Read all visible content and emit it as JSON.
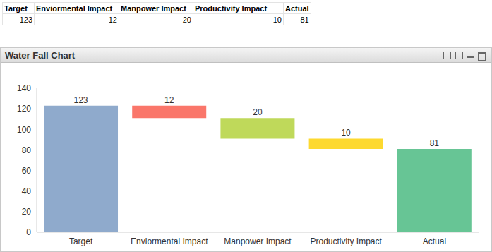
{
  "table": {
    "columns": [
      "Target",
      "Enviormental Impact",
      "Manpower Impact",
      "Productivity Impact",
      "Actual"
    ],
    "rows": [
      [
        123,
        12,
        20,
        10,
        81
      ]
    ]
  },
  "chart_data": {
    "type": "waterfall",
    "title": "Water Fall Chart",
    "categories": [
      "Target",
      "Enviormental Impact",
      "Manpower Impact",
      "Productivity Impact",
      "Actual"
    ],
    "values": [
      123,
      12,
      20,
      10,
      81
    ],
    "colors": [
      "#8faacc",
      "#fa766a",
      "#bfd95a",
      "#fdd92f",
      "#67c595"
    ],
    "ylim": [
      0,
      140
    ],
    "yticks": [
      0,
      20,
      40,
      60,
      80,
      100,
      120,
      140
    ],
    "grid": false,
    "data_labels": true
  }
}
